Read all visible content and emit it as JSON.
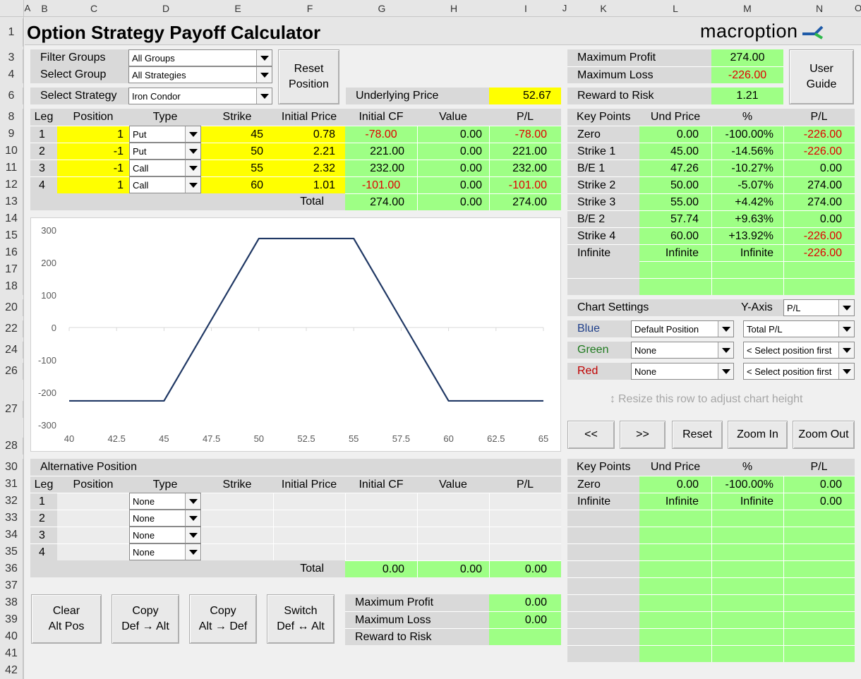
{
  "app": {
    "title": "Option Strategy Payoff Calculator",
    "brand": "macroption"
  },
  "columns": [
    "A",
    "B",
    "C",
    "D",
    "E",
    "F",
    "G",
    "H",
    "I",
    "J",
    "K",
    "L",
    "M",
    "N",
    "O"
  ],
  "rows": [
    "1",
    "3",
    "4",
    "6",
    "8",
    "9",
    "10",
    "11",
    "12",
    "13",
    "14",
    "15",
    "16",
    "17",
    "18",
    "20",
    "22",
    "24",
    "26",
    "27",
    "28",
    "30",
    "31",
    "32",
    "33",
    "34",
    "35",
    "36",
    "37",
    "38",
    "39",
    "40",
    "41",
    "42"
  ],
  "controls": {
    "filter_groups_label": "Filter Groups",
    "filter_groups_value": "All Groups",
    "select_group_label": "Select Group",
    "select_group_value": "All Strategies",
    "select_strategy_label": "Select Strategy",
    "select_strategy_value": "Iron Condor",
    "reset_position": "Reset\nPosition",
    "underlying_label": "Underlying Price",
    "underlying_value": "52.67",
    "user_guide": "User\nGuide"
  },
  "summary": {
    "max_profit_label": "Maximum Profit",
    "max_profit": "274.00",
    "max_loss_label": "Maximum Loss",
    "max_loss": "-226.00",
    "rr_label": "Reward to Risk",
    "rr": "1.21"
  },
  "legs": {
    "headers": [
      "Leg",
      "Position",
      "Type",
      "Strike",
      "Initial Price",
      "Initial CF",
      "Value",
      "P/L"
    ],
    "rows": [
      {
        "leg": "1",
        "pos": "1",
        "type": "Put",
        "strike": "45",
        "price": "0.78",
        "cf": "-78.00",
        "value": "0.00",
        "pl": "-78.00"
      },
      {
        "leg": "2",
        "pos": "-1",
        "type": "Put",
        "strike": "50",
        "price": "2.21",
        "cf": "221.00",
        "value": "0.00",
        "pl": "221.00"
      },
      {
        "leg": "3",
        "pos": "-1",
        "type": "Call",
        "strike": "55",
        "price": "2.32",
        "cf": "232.00",
        "value": "0.00",
        "pl": "232.00"
      },
      {
        "leg": "4",
        "pos": "1",
        "type": "Call",
        "strike": "60",
        "price": "1.01",
        "cf": "-101.00",
        "value": "0.00",
        "pl": "-101.00"
      }
    ],
    "total_label": "Total",
    "total_cf": "274.00",
    "total_value": "0.00",
    "total_pl": "274.00"
  },
  "keypoints": {
    "headers": [
      "Key Points",
      "Und Price",
      "%",
      "P/L"
    ],
    "rows": [
      {
        "name": "Zero",
        "price": "0.00",
        "pct": "-100.00%",
        "pl": "-226.00"
      },
      {
        "name": "Strike 1",
        "price": "45.00",
        "pct": "-14.56%",
        "pl": "-226.00"
      },
      {
        "name": "B/E 1",
        "price": "47.26",
        "pct": "-10.27%",
        "pl": "0.00"
      },
      {
        "name": "Strike 2",
        "price": "50.00",
        "pct": "-5.07%",
        "pl": "274.00"
      },
      {
        "name": "Strike 3",
        "price": "55.00",
        "pct": "+4.42%",
        "pl": "274.00"
      },
      {
        "name": "B/E 2",
        "price": "57.74",
        "pct": "+9.63%",
        "pl": "0.00"
      },
      {
        "name": "Strike 4",
        "price": "60.00",
        "pct": "+13.92%",
        "pl": "-226.00"
      },
      {
        "name": "Infinite",
        "price": "Infinite",
        "pct": "Infinite",
        "pl": "-226.00"
      }
    ]
  },
  "chart_settings": {
    "title": "Chart Settings",
    "yaxis_label": "Y-Axis",
    "yaxis_value": "P/L",
    "blue_label": "Blue",
    "blue_pos": "Default Position",
    "blue_series": "Total P/L",
    "green_label": "Green",
    "green_pos": "None",
    "green_series": "< Select position first",
    "red_label": "Red",
    "red_pos": "None",
    "red_series": "< Select position first",
    "resize_hint": "Resize this row to adjust chart height",
    "buttons": [
      "<<",
      ">>",
      "Reset",
      "Zoom In",
      "Zoom Out"
    ]
  },
  "chart_data": {
    "type": "line",
    "x": [
      40,
      45,
      47.26,
      50,
      55,
      57.74,
      60,
      65
    ],
    "series": [
      {
        "values": [
          -226,
          -226,
          0,
          274,
          274,
          0,
          -226,
          -226
        ]
      }
    ],
    "xlim": [
      40,
      65
    ],
    "ylim": [
      -300,
      300
    ],
    "xticks": [
      "40",
      "42.5",
      "45",
      "47.5",
      "50",
      "52.5",
      "55",
      "57.5",
      "60",
      "62.5",
      "65"
    ],
    "yticks": [
      "300",
      "200",
      "100",
      "0",
      "-100",
      "-200",
      "-300"
    ],
    "line_color": "#203864"
  },
  "alt": {
    "title": "Alternative Position",
    "headers": [
      "Leg",
      "Position",
      "Type",
      "Strike",
      "Initial Price",
      "Initial CF",
      "Value",
      "P/L"
    ],
    "rows": [
      {
        "leg": "1",
        "type": "None"
      },
      {
        "leg": "2",
        "type": "None"
      },
      {
        "leg": "3",
        "type": "None"
      },
      {
        "leg": "4",
        "type": "None"
      }
    ],
    "total_label": "Total",
    "total_cf": "0.00",
    "total_value": "0.00",
    "total_pl": "0.00",
    "max_profit_label": "Maximum Profit",
    "max_profit": "0.00",
    "max_loss_label": "Maximum Loss",
    "max_loss": "0.00",
    "rr_label": "Reward to Risk",
    "buttons": [
      "Clear\nAlt Pos",
      "Copy\nDef → Alt",
      "Copy\nAlt → Def",
      "Switch\nDef ↔ Alt"
    ]
  },
  "alt_keypoints": {
    "headers": [
      "Key Points",
      "Und Price",
      "%",
      "P/L"
    ],
    "rows": [
      {
        "name": "Zero",
        "price": "0.00",
        "pct": "-100.00%",
        "pl": "0.00"
      },
      {
        "name": "Infinite",
        "price": "Infinite",
        "pct": "Infinite",
        "pl": "0.00"
      }
    ]
  }
}
